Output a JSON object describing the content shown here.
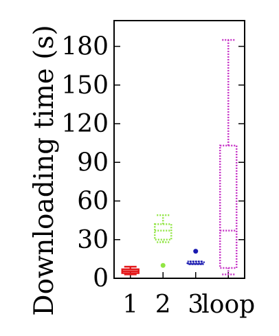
{
  "chart_data": {
    "type": "box",
    "title": "",
    "xlabel": "",
    "ylabel": "Downloading time (s)",
    "ylim": [
      0,
      200
    ],
    "yticks": [
      0,
      30,
      60,
      90,
      120,
      150,
      180
    ],
    "categories": [
      "1",
      "2",
      "3",
      "loop"
    ],
    "grid": false,
    "legend": "none",
    "boxes": [
      {
        "category": "1",
        "whisker_low": 3,
        "q1": 4,
        "median": 5.5,
        "q3": 7,
        "whisker_high": 9,
        "outliers": [],
        "color": "#e41a1c",
        "style": "solid"
      },
      {
        "category": "2",
        "whisker_low": 28,
        "q1": 30,
        "median": 37,
        "q3": 42,
        "whisker_high": 49,
        "outliers": [
          10
        ],
        "color": "#91e544",
        "style": "dotted"
      },
      {
        "category": "3",
        "whisker_low": 11,
        "q1": 11,
        "median": 11.5,
        "q3": 13,
        "whisker_high": 13,
        "outliers": [
          21
        ],
        "color": "#1a1ab0",
        "style": "dotted"
      },
      {
        "category": "loop",
        "whisker_low": 3,
        "q1": 8,
        "median": 37,
        "q3": 103,
        "whisker_high": 185,
        "outliers": [],
        "color": "#c531c5",
        "style": "dotted"
      }
    ]
  }
}
